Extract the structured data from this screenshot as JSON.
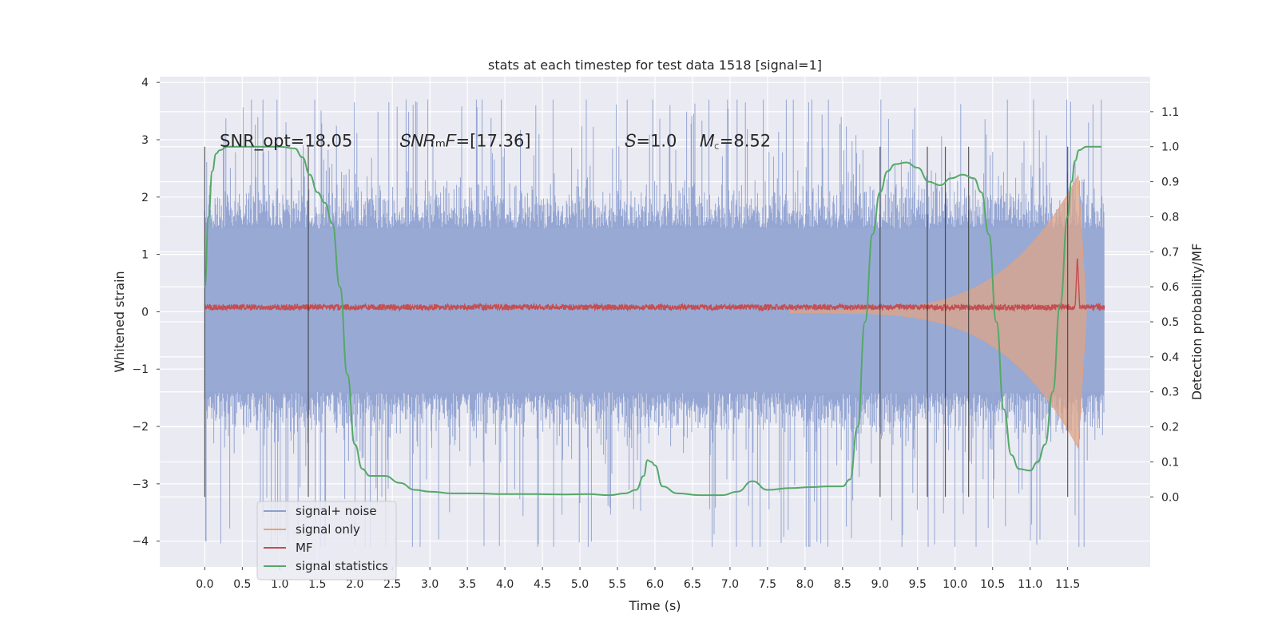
{
  "chart_data": {
    "type": "line",
    "title": "stats at each timestep for test data 1518 [signal=1]",
    "xlabel": "Time (s)",
    "ylabel": "Whitened strain",
    "y2label": "Detection probability/MF",
    "xlim": [
      -0.6,
      12.6
    ],
    "ylim": [
      -4.45,
      4.1
    ],
    "y2lim": [
      -0.2,
      1.2
    ],
    "x_ticks": [
      0.0,
      0.5,
      1.0,
      1.5,
      2.0,
      2.5,
      3.0,
      3.5,
      4.0,
      4.5,
      5.0,
      5.5,
      6.0,
      6.5,
      7.0,
      7.5,
      8.0,
      8.5,
      9.0,
      9.5,
      10.0,
      10.5,
      11.0,
      11.5
    ],
    "x_tick_labels": [
      "0.0",
      "0.5",
      "1.0",
      "1.5",
      "2.0",
      "2.5",
      "3.0",
      "3.5",
      "4.0",
      "4.5",
      "5.0",
      "5.5",
      "6.0",
      "6.5",
      "7.0",
      "7.5",
      "8.0",
      "8.5",
      "9.0",
      "9.5",
      "10.0",
      "10.5",
      "11.0",
      "11.5"
    ],
    "y_ticks": [
      4,
      3,
      2,
      1,
      0,
      -1,
      -2,
      -3,
      -4
    ],
    "y_tick_labels": [
      "4",
      "3",
      "2",
      "1",
      "0",
      "−1",
      "−2",
      "−3",
      "−4"
    ],
    "y2_ticks": [
      1.1,
      1.0,
      0.9,
      0.8,
      0.7,
      0.6,
      0.5,
      0.4,
      0.3,
      0.2,
      0.1,
      0.0
    ],
    "y2_tick_labels": [
      "1.1",
      "1.0",
      "0.9",
      "0.8",
      "0.7",
      "0.6",
      "0.5",
      "0.4",
      "0.3",
      "0.2",
      "0.1",
      "0.0"
    ],
    "grid": true,
    "legend_position": "lower-left",
    "legend": [
      {
        "name": "signal+ noise",
        "color": "#8c9fcf"
      },
      {
        "name": "signal only",
        "color": "#e8a07c"
      },
      {
        "name": "MF",
        "color": "#c44e52"
      },
      {
        "name": "signal statistics",
        "color": "#55a868"
      }
    ],
    "annotations": [
      {
        "text": "SNR_opt=18.05",
        "x": 0.2,
        "y": 2.98
      },
      {
        "text": "𝑆𝑁𝑅ₘ𝐹=[17.36]",
        "x": 2.6,
        "y": 2.98
      },
      {
        "text": "𝑆=1.0",
        "x": 5.6,
        "y": 2.98
      },
      {
        "text": "𝑀꜀=8.52",
        "x": 6.6,
        "y": 2.98
      }
    ],
    "noise_envelope": {
      "x_range": [
        0.0,
        11.99
      ],
      "dense_band": [
        -1.4,
        1.45
      ],
      "spike_range_upper": [
        1.8,
        3.7
      ],
      "spike_range_lower": [
        -1.8,
        -4.1
      ]
    },
    "signal_only": {
      "x_start": 7.8,
      "x_end": 11.75,
      "peak_x": 11.65,
      "amplitude_start": 0.02,
      "amplitude_at_peak": 2.4
    },
    "mf_series": {
      "x_range": [
        0.0,
        11.99
      ],
      "baseline": 0.08,
      "noise": 0.05,
      "peak_x": 11.63,
      "peak_value": 0.98
    },
    "signal_statistics": {
      "x": [
        0.0,
        0.05,
        0.1,
        0.15,
        0.2,
        0.3,
        0.5,
        0.8,
        1.0,
        1.2,
        1.3,
        1.4,
        1.5,
        1.6,
        1.7,
        1.8,
        1.9,
        2.0,
        2.1,
        2.2,
        2.4,
        2.6,
        2.8,
        3.0,
        3.3,
        3.6,
        4.0,
        4.4,
        4.8,
        5.1,
        5.4,
        5.6,
        5.75,
        5.85,
        5.9,
        5.95,
        6.0,
        6.1,
        6.3,
        6.6,
        6.9,
        7.1,
        7.3,
        7.5,
        7.8,
        8.1,
        8.3,
        8.5,
        8.6,
        8.7,
        8.8,
        8.9,
        9.0,
        9.1,
        9.2,
        9.35,
        9.5,
        9.65,
        9.8,
        9.95,
        10.1,
        10.25,
        10.35,
        10.45,
        10.55,
        10.65,
        10.75,
        10.85,
        11.0,
        11.1,
        11.2,
        11.3,
        11.4,
        11.5,
        11.55,
        11.6,
        11.65,
        11.75,
        11.95
      ],
      "values": [
        0.6,
        0.8,
        0.93,
        0.98,
        0.99,
        1.0,
        1.0,
        1.0,
        1.0,
        0.995,
        0.97,
        0.92,
        0.87,
        0.84,
        0.78,
        0.6,
        0.35,
        0.15,
        0.08,
        0.06,
        0.06,
        0.04,
        0.02,
        0.015,
        0.01,
        0.01,
        0.008,
        0.008,
        0.007,
        0.008,
        0.005,
        0.01,
        0.02,
        0.06,
        0.105,
        0.1,
        0.09,
        0.03,
        0.01,
        0.005,
        0.005,
        0.015,
        0.045,
        0.02,
        0.025,
        0.028,
        0.03,
        0.03,
        0.05,
        0.2,
        0.5,
        0.75,
        0.87,
        0.93,
        0.95,
        0.955,
        0.94,
        0.9,
        0.89,
        0.91,
        0.92,
        0.91,
        0.87,
        0.75,
        0.5,
        0.25,
        0.12,
        0.08,
        0.075,
        0.1,
        0.15,
        0.3,
        0.55,
        0.8,
        0.9,
        0.96,
        0.99,
        1.0,
        1.0
      ]
    },
    "detection_markers_x": [
      0.0,
      1.38,
      9.0,
      9.63,
      9.87,
      10.18,
      11.5
    ]
  }
}
